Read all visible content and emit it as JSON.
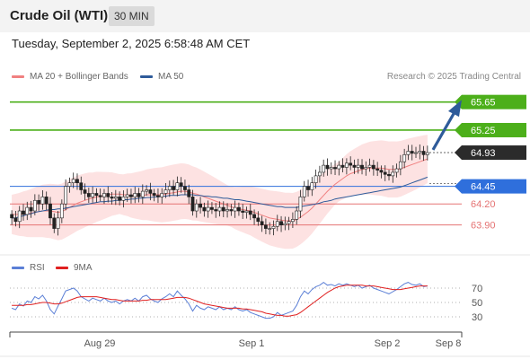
{
  "header": {
    "instrument": "Crude Oil (WTI)",
    "interval": "30 MIN"
  },
  "datetime": "Tuesday, September 2, 2025 6:58:48 AM CET",
  "legend_top": [
    {
      "label": "MA 20 + Bollinger Bands",
      "color": "#f08080"
    },
    {
      "label": "MA 50",
      "color": "#2e5b9a"
    }
  ],
  "credit": "Research © 2025 Trading Central",
  "legend_bottom": [
    {
      "label": "RSI",
      "color": "#5b7fd6"
    },
    {
      "label": "9MA",
      "color": "#e02020"
    }
  ],
  "chart_data": {
    "type": "candlestick",
    "price_range": [
      63.5,
      65.85
    ],
    "current_price": 64.93,
    "levels": [
      {
        "label": "65.65",
        "value": 65.65,
        "kind": "resistance",
        "color": "#4caf1a"
      },
      {
        "label": "65.25",
        "value": 65.25,
        "kind": "resistance",
        "color": "#4caf1a"
      },
      {
        "label": "64.45",
        "value": 64.45,
        "kind": "pivot",
        "color": "#2f6fdc"
      },
      {
        "label": "64.20",
        "value": 64.2,
        "kind": "support",
        "color": "#e57373"
      },
      {
        "label": "63.90",
        "value": 63.9,
        "kind": "support",
        "color": "#e57373"
      }
    ],
    "current_label": "64.93",
    "x_ticks": [
      "Aug 29",
      "Sep 1",
      "Sep 2",
      "Sep 8"
    ],
    "rsi_ticks": [
      "70",
      "50",
      "30"
    ],
    "rsi_range": [
      10,
      90
    ],
    "close": [
      64.0,
      63.95,
      64.1,
      64.05,
      64.15,
      64.1,
      64.25,
      64.2,
      64.3,
      64.2,
      64.0,
      63.85,
      64.0,
      64.2,
      64.45,
      64.5,
      64.55,
      64.5,
      64.4,
      64.35,
      64.3,
      64.35,
      64.32,
      64.3,
      64.35,
      64.3,
      64.28,
      64.3,
      64.25,
      64.3,
      64.33,
      64.3,
      64.35,
      64.3,
      64.38,
      64.4,
      64.35,
      64.32,
      64.3,
      64.35,
      64.4,
      64.45,
      64.4,
      64.5,
      64.45,
      64.4,
      64.3,
      64.1,
      64.2,
      64.15,
      64.1,
      64.15,
      64.12,
      64.1,
      64.15,
      64.1,
      64.12,
      64.1,
      64.15,
      64.1,
      64.08,
      64.1,
      64.05,
      64.0,
      63.95,
      63.9,
      63.85,
      63.85,
      63.88,
      63.95,
      63.9,
      63.92,
      63.95,
      63.98,
      64.1,
      64.3,
      64.45,
      64.4,
      64.5,
      64.6,
      64.65,
      64.75,
      64.7,
      64.72,
      64.7,
      64.75,
      64.72,
      64.78,
      64.75,
      64.72,
      64.75,
      64.7,
      64.72,
      64.75,
      64.7,
      64.68,
      64.65,
      64.62,
      64.6,
      64.65,
      64.7,
      64.8,
      64.9,
      64.95,
      64.92,
      64.93,
      64.95,
      64.9,
      64.93
    ],
    "ma20": [
      64.05,
      64.05,
      64.05,
      64.06,
      64.06,
      64.07,
      64.08,
      64.09,
      64.1,
      64.1,
      64.1,
      64.09,
      64.08,
      64.09,
      64.12,
      64.15,
      64.18,
      64.21,
      64.23,
      64.25,
      64.27,
      64.28,
      64.3,
      64.31,
      64.32,
      64.33,
      64.34,
      64.34,
      64.34,
      64.33,
      64.33,
      64.32,
      64.32,
      64.32,
      64.32,
      64.33,
      64.33,
      64.33,
      64.33,
      64.33,
      64.34,
      64.35,
      64.36,
      64.37,
      64.38,
      64.38,
      64.37,
      64.35,
      64.34,
      64.32,
      64.3,
      64.28,
      64.26,
      64.24,
      64.22,
      64.2,
      64.18,
      64.16,
      64.14,
      64.13,
      64.12,
      64.11,
      64.1,
      64.08,
      64.06,
      64.04,
      64.02,
      64.0,
      63.99,
      63.98,
      63.97,
      63.96,
      63.96,
      63.96,
      63.98,
      64.01,
      64.05,
      64.09,
      64.14,
      64.2,
      64.26,
      64.32,
      64.38,
      64.43,
      64.48,
      64.52,
      64.56,
      64.6,
      64.63,
      64.65,
      64.67,
      64.69,
      64.7,
      64.71,
      64.71,
      64.71,
      64.71,
      64.7,
      64.69,
      64.69,
      64.69,
      64.7,
      64.72,
      64.74,
      64.76,
      64.78,
      64.8,
      64.82,
      64.84
    ],
    "ma50": [
      64.0,
      64.0,
      64.02,
      64.03,
      64.05,
      64.06,
      64.08,
      64.09,
      64.1,
      64.11,
      64.12,
      64.12,
      64.13,
      64.13,
      64.14,
      64.15,
      64.16,
      64.17,
      64.18,
      64.19,
      64.2,
      64.21,
      64.22,
      64.23,
      64.23,
      64.24,
      64.24,
      64.25,
      64.25,
      64.26,
      64.26,
      64.27,
      64.27,
      64.28,
      64.28,
      64.29,
      64.29,
      64.3,
      64.3,
      64.31,
      64.31,
      64.32,
      64.32,
      64.32,
      64.33,
      64.33,
      64.33,
      64.33,
      64.32,
      64.32,
      64.31,
      64.31,
      64.3,
      64.3,
      64.29,
      64.28,
      64.28,
      64.27,
      64.26,
      64.26,
      64.25,
      64.24,
      64.23,
      64.22,
      64.21,
      64.2,
      64.19,
      64.18,
      64.17,
      64.16,
      64.16,
      64.15,
      64.15,
      64.15,
      64.15,
      64.16,
      64.17,
      64.18,
      64.19,
      64.2,
      64.21,
      64.23,
      64.24,
      64.25,
      64.27,
      64.28,
      64.29,
      64.3,
      64.31,
      64.32,
      64.33,
      64.34,
      64.35,
      64.36,
      64.37,
      64.38,
      64.39,
      64.4,
      64.41,
      64.42,
      64.43,
      64.44,
      64.46,
      64.48,
      64.5,
      64.52,
      64.54,
      64.56,
      64.58
    ],
    "rsi": [
      42,
      40,
      48,
      45,
      52,
      50,
      58,
      55,
      60,
      52,
      40,
      34,
      45,
      55,
      66,
      68,
      70,
      66,
      58,
      55,
      52,
      56,
      54,
      52,
      56,
      52,
      50,
      52,
      48,
      52,
      54,
      52,
      56,
      52,
      58,
      60,
      55,
      52,
      50,
      55,
      58,
      62,
      58,
      66,
      60,
      55,
      48,
      38,
      46,
      42,
      40,
      44,
      42,
      40,
      44,
      40,
      42,
      40,
      44,
      40,
      38,
      40,
      36,
      34,
      32,
      30,
      28,
      28,
      30,
      36,
      32,
      34,
      36,
      38,
      46,
      58,
      66,
      62,
      68,
      72,
      74,
      78,
      74,
      75,
      73,
      76,
      74,
      76,
      74,
      72,
      74,
      70,
      72,
      74,
      70,
      68,
      66,
      64,
      62,
      65,
      68,
      72,
      76,
      78,
      75,
      74,
      76,
      72,
      73
    ],
    "rsi_ma": [
      46,
      46,
      46,
      46,
      47,
      47,
      48,
      49,
      50,
      50,
      49,
      48,
      48,
      49,
      51,
      53,
      55,
      57,
      58,
      58,
      58,
      58,
      58,
      57,
      56,
      55,
      54,
      54,
      53,
      52,
      52,
      52,
      52,
      52,
      53,
      53,
      54,
      54,
      54,
      54,
      54,
      55,
      56,
      57,
      57,
      57,
      56,
      54,
      52,
      50,
      48,
      47,
      46,
      45,
      44,
      43,
      42,
      42,
      42,
      42,
      41,
      41,
      40,
      39,
      38,
      37,
      35,
      34,
      33,
      32,
      32,
      31,
      31,
      32,
      33,
      36,
      40,
      44,
      48,
      52,
      56,
      60,
      64,
      67,
      70,
      72,
      73,
      74,
      74,
      74,
      74,
      74,
      73,
      73,
      73,
      72,
      71,
      70,
      69,
      68,
      68,
      68,
      69,
      70,
      71,
      72,
      73,
      73,
      73
    ]
  }
}
